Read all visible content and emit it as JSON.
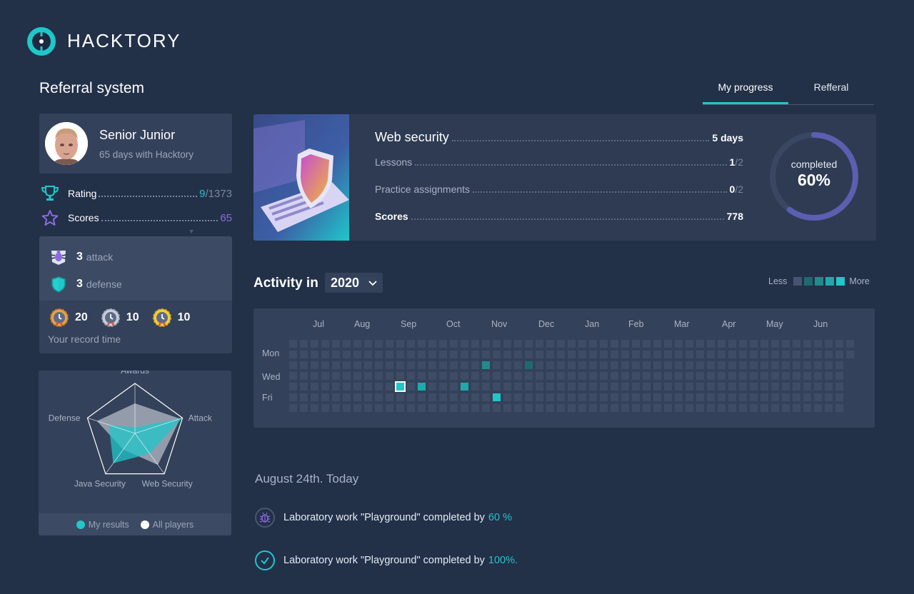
{
  "brand": {
    "name": "HACKTORY",
    "accent": "#1fc7c9",
    "purple": "#8d6bdf"
  },
  "page": {
    "title": "Referral system"
  },
  "tabs": [
    {
      "label": "My progress",
      "active": true
    },
    {
      "label": "Refferal",
      "active": false
    }
  ],
  "profile": {
    "name": "Senior Junior",
    "subtitle": "65 days with Hacktory",
    "rating_label": "Rating",
    "rating_value": "9",
    "rating_total": "/1373",
    "scores_label": "Scores",
    "scores_value": "65"
  },
  "achievements": {
    "attack_count": "3",
    "attack_label": "attack",
    "defense_count": "3",
    "defense_label": "defense",
    "medals": [
      "20",
      "10",
      "10"
    ],
    "record_label": "Your record time"
  },
  "radar": {
    "axes": [
      "Awards",
      "Attack",
      "Web Security",
      "Java Security",
      "Defense"
    ],
    "my_results": [
      0.12,
      1.0,
      0.5,
      0.74,
      0.55
    ],
    "all_players": [
      0.6,
      0.95,
      0.78,
      0.4,
      0.8
    ],
    "legend": {
      "mine": "My results",
      "all": "All players"
    }
  },
  "course": {
    "title": "Web security",
    "duration": "5 days",
    "rows": [
      {
        "label": "Lessons",
        "value": "1",
        "total": "/2"
      },
      {
        "label": "Practice assignments",
        "value": "0",
        "total": "/2"
      }
    ],
    "scores_label": "Scores",
    "scores_value": "778",
    "completed_label": "completed",
    "completed_percent": "60%",
    "completed_fraction": 0.6
  },
  "activity": {
    "title": "Activity in",
    "year": "2020",
    "less_label": "Less",
    "more_label": "More",
    "scale_colors": [
      "#475370",
      "#1e6a70",
      "#218a8c",
      "#1fa9ab",
      "#1fc7c9"
    ],
    "months": [
      "Jul",
      "Aug",
      "Sep",
      "Oct",
      "Nov",
      "Dec",
      "Jan",
      "Feb",
      "Mar",
      "Apr",
      "May",
      "Jun"
    ],
    "days": [
      "Mon",
      "Wed",
      "Fri"
    ],
    "highlights": [
      {
        "week": 18,
        "day": 2,
        "level": 2
      },
      {
        "week": 22,
        "day": 2,
        "level": 1
      },
      {
        "week": 10,
        "day": 4,
        "level": 4,
        "selected": true
      },
      {
        "week": 12,
        "day": 4,
        "level": 3
      },
      {
        "week": 16,
        "day": 4,
        "level": 3
      },
      {
        "week": 19,
        "day": 5,
        "level": 4
      }
    ]
  },
  "timeline": {
    "date": "August 24th. Today",
    "events": [
      {
        "text": "Laboratory work \"Playground\" completed by",
        "pct": "60 %",
        "icon": "bug-icon"
      },
      {
        "text": "Laboratory work \"Playground\" completed by",
        "pct": "100%.",
        "icon": "check-icon"
      }
    ]
  }
}
